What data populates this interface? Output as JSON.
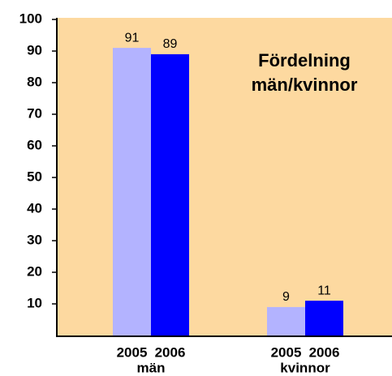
{
  "chart_data": {
    "type": "bar",
    "title": "Fördelning män/kvinnor",
    "categories": [
      "män",
      "kvinnor"
    ],
    "series": [
      {
        "name": "2005",
        "color": "#b3b3ff",
        "values": [
          91,
          9
        ]
      },
      {
        "name": "2006",
        "color": "#0000ff",
        "values": [
          89,
          11
        ]
      }
    ],
    "ylim": [
      0,
      100
    ],
    "yticks": [
      10,
      20,
      30,
      40,
      50,
      60,
      70,
      80,
      90,
      100
    ],
    "background": "#fdd9a0"
  }
}
